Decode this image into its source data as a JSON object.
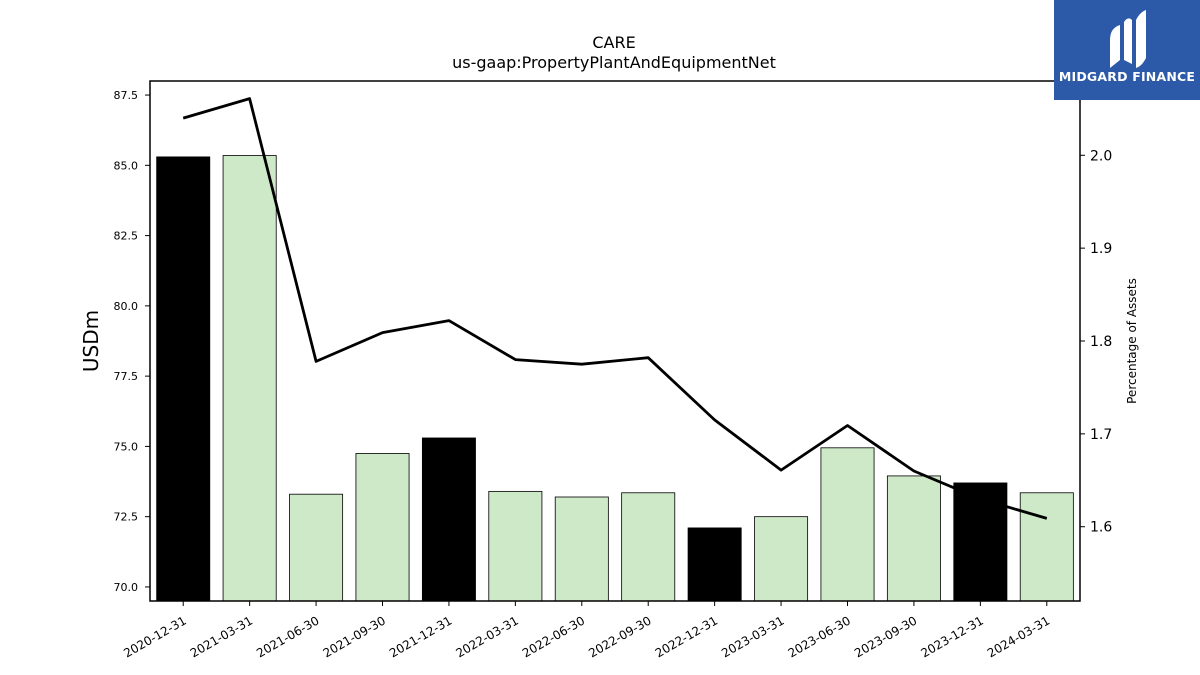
{
  "brand": {
    "name": "MIDGARD FINANCE",
    "bg_color": "#2c5aa8",
    "icon": "midgard-logo-icon"
  },
  "chart_data": {
    "type": "bar",
    "title": "CARE",
    "subtitle": "us-gaap:PropertyPlantAndEquipmentNet",
    "ylabel": "USDm",
    "ylabel_right": "Percentage of Assets",
    "ylim": [
      69.5,
      88.0
    ],
    "ylim_right": [
      1.52,
      2.08
    ],
    "yticks": [
      "70.0",
      "72.5",
      "75.0",
      "77.5",
      "80.0",
      "82.5",
      "85.0",
      "87.5"
    ],
    "yticks_right": [
      "1.6",
      "1.7",
      "1.8",
      "1.9",
      "2.0"
    ],
    "categories": [
      "2020-12-31",
      "2021-03-31",
      "2021-06-30",
      "2021-09-30",
      "2021-12-31",
      "2022-03-31",
      "2022-06-30",
      "2022-09-30",
      "2022-12-31",
      "2023-03-31",
      "2023-06-30",
      "2023-09-30",
      "2023-12-31",
      "2024-03-31"
    ],
    "series": [
      {
        "type": "bar",
        "axis": "left",
        "values": [
          85.3,
          85.35,
          73.3,
          74.75,
          75.3,
          73.4,
          73.2,
          73.35,
          72.1,
          72.5,
          74.95,
          73.95,
          73.7,
          73.35
        ]
      },
      {
        "type": "line",
        "axis": "right",
        "values": [
          2.04,
          2.061,
          1.778,
          1.809,
          1.822,
          1.78,
          1.775,
          1.782,
          1.715,
          1.661,
          1.709,
          1.66,
          1.63,
          1.609
        ]
      }
    ],
    "bar_colors": {
      "annual": "#000000",
      "quarterly": "#cde9c8"
    },
    "annual_flags": [
      true,
      false,
      false,
      false,
      true,
      false,
      false,
      false,
      true,
      false,
      false,
      false,
      true,
      false
    ],
    "line_color": "#000000",
    "grid": false
  }
}
